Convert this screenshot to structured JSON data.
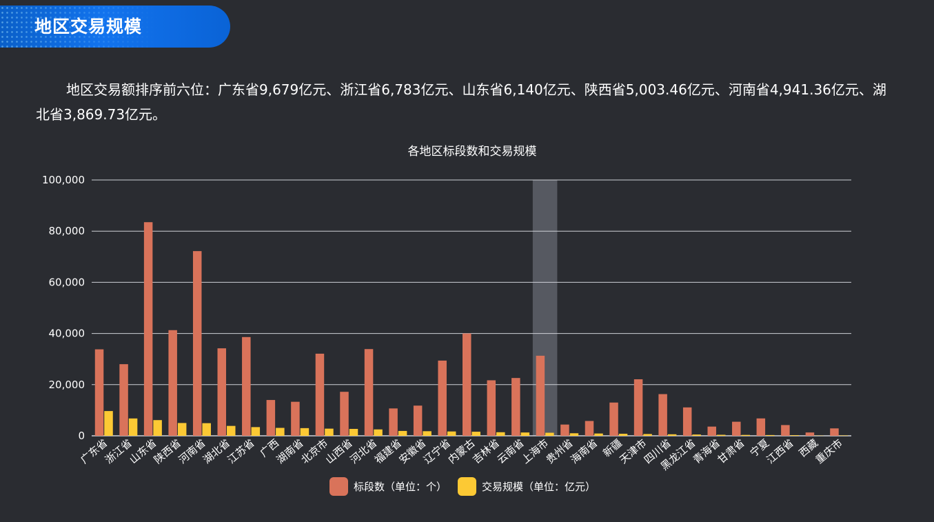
{
  "header": {
    "title": "地区交易规模"
  },
  "summary": "地区交易额排序前六位：广东省9,679亿元、浙江省6,783亿元、山东省6,140亿元、陕西省5,003.46亿元、河南省4,941.36亿元、湖北省3,869.73亿元。",
  "colors": {
    "bids": "#d9735a",
    "volume": "#fcc934",
    "highlight": "#5b5e67",
    "grid": "#cfd2d8"
  },
  "chart_data": {
    "type": "bar",
    "title": "各地区标段数和交易规模",
    "categories": [
      "广东省",
      "浙江省",
      "山东省",
      "陕西省",
      "河南省",
      "湖北省",
      "江苏省",
      "广西",
      "湖南省",
      "北京市",
      "山西省",
      "河北省",
      "福建省",
      "安徽省",
      "辽宁省",
      "内蒙古",
      "吉林省",
      "云南省",
      "上海市",
      "贵州省",
      "海南省",
      "新疆",
      "天津市",
      "四川省",
      "黑龙江省",
      "青海省",
      "甘肃省",
      "宁夏",
      "江西省",
      "西藏",
      "重庆市"
    ],
    "series": [
      {
        "name": "标段数（单位：个）",
        "values": [
          33800,
          28000,
          83500,
          41300,
          72200,
          34200,
          38600,
          14000,
          13300,
          32100,
          17200,
          33900,
          10700,
          11800,
          29400,
          40000,
          21700,
          22600,
          31300,
          4400,
          5800,
          13000,
          22100,
          16300,
          11100,
          3600,
          5500,
          6800,
          4200,
          1300,
          2900
        ]
      },
      {
        "name": "交易规模（单位：亿元）",
        "values": [
          9679,
          6783,
          6140,
          5003.46,
          4941.36,
          3869.73,
          3400,
          3100,
          3000,
          2800,
          2700,
          2500,
          1900,
          1800,
          1700,
          1600,
          1400,
          1300,
          1200,
          1000,
          900,
          800,
          700,
          600,
          500,
          400,
          350,
          300,
          250,
          100,
          150
        ]
      }
    ],
    "yticks": [
      "0",
      "20,000",
      "40,000",
      "60,000",
      "80,000",
      "100,000"
    ],
    "ylim": [
      0,
      100000
    ],
    "highlighted_category": "上海市",
    "legend_position": "bottom"
  }
}
